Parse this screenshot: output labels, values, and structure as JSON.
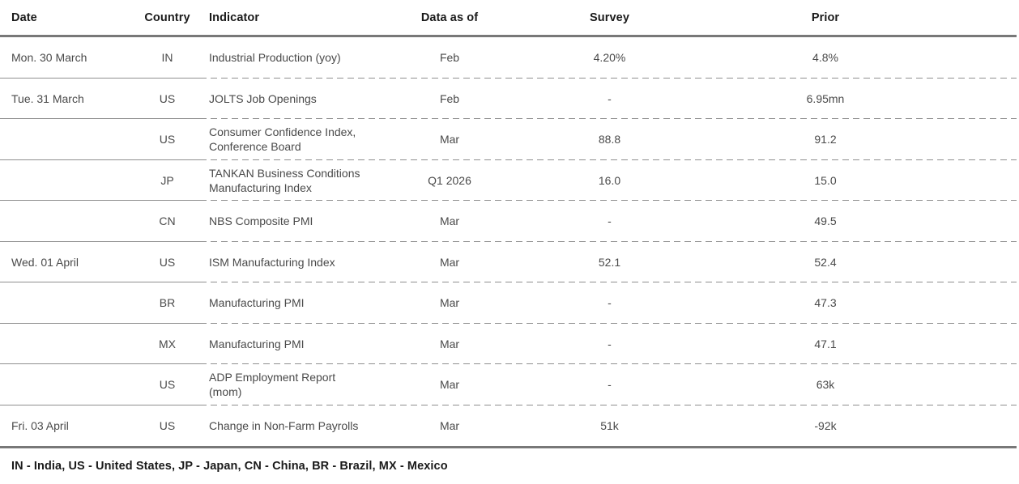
{
  "table": {
    "columns": [
      {
        "key": "date",
        "label": "Date"
      },
      {
        "key": "country",
        "label": "Country"
      },
      {
        "key": "indicator",
        "label": "Indicator"
      },
      {
        "key": "data_as_of",
        "label": "Data as of"
      },
      {
        "key": "survey",
        "label": "Survey"
      },
      {
        "key": "prior",
        "label": "Prior"
      }
    ],
    "rows": [
      {
        "date": "Mon. 30 March",
        "country": "IN",
        "indicator": "Industrial Production (yoy)",
        "data_as_of": "Feb",
        "survey": "4.20%",
        "prior": "4.8%"
      },
      {
        "date": "Tue. 31 March",
        "country": "US",
        "indicator": "JOLTS Job Openings",
        "data_as_of": "Feb",
        "survey": "-",
        "prior": "6.95mn"
      },
      {
        "date": "",
        "country": "US",
        "indicator": "Consumer Confidence Index,\nConference Board",
        "data_as_of": "Mar",
        "survey": "88.8",
        "prior": "91.2"
      },
      {
        "date": "",
        "country": "JP",
        "indicator": "TANKAN Business Conditions\nManufacturing Index",
        "data_as_of": "Q1 2026",
        "survey": "16.0",
        "prior": "15.0"
      },
      {
        "date": "",
        "country": "CN",
        "indicator": "NBS Composite PMI",
        "data_as_of": "Mar",
        "survey": "-",
        "prior": "49.5"
      },
      {
        "date": "Wed. 01 April",
        "country": "US",
        "indicator": "ISM Manufacturing Index",
        "data_as_of": "Mar",
        "survey": "52.1",
        "prior": "52.4"
      },
      {
        "date": "",
        "country": "BR",
        "indicator": "Manufacturing PMI",
        "data_as_of": "Mar",
        "survey": "-",
        "prior": "47.3"
      },
      {
        "date": "",
        "country": "MX",
        "indicator": "Manufacturing PMI",
        "data_as_of": "Mar",
        "survey": "-",
        "prior": "47.1"
      },
      {
        "date": "",
        "country": "US",
        "indicator": "ADP Employment Report\n(mom)",
        "data_as_of": "Mar",
        "survey": "-",
        "prior": "63k"
      },
      {
        "date": "Fri. 03 April",
        "country": "US",
        "indicator": "Change in Non-Farm Payrolls",
        "data_as_of": "Mar",
        "survey": "51k",
        "prior": "-92k"
      }
    ]
  },
  "footer": {
    "legend": "IN - India, US - United States, JP - Japan, CN - China, BR - Brazil, MX - Mexico"
  },
  "colors": {
    "thick_rule": "#787878",
    "separator": "#8f8f8f",
    "header_text": "#1a1a1a",
    "body_text": "#4a4a4a",
    "background": "#ffffff"
  }
}
